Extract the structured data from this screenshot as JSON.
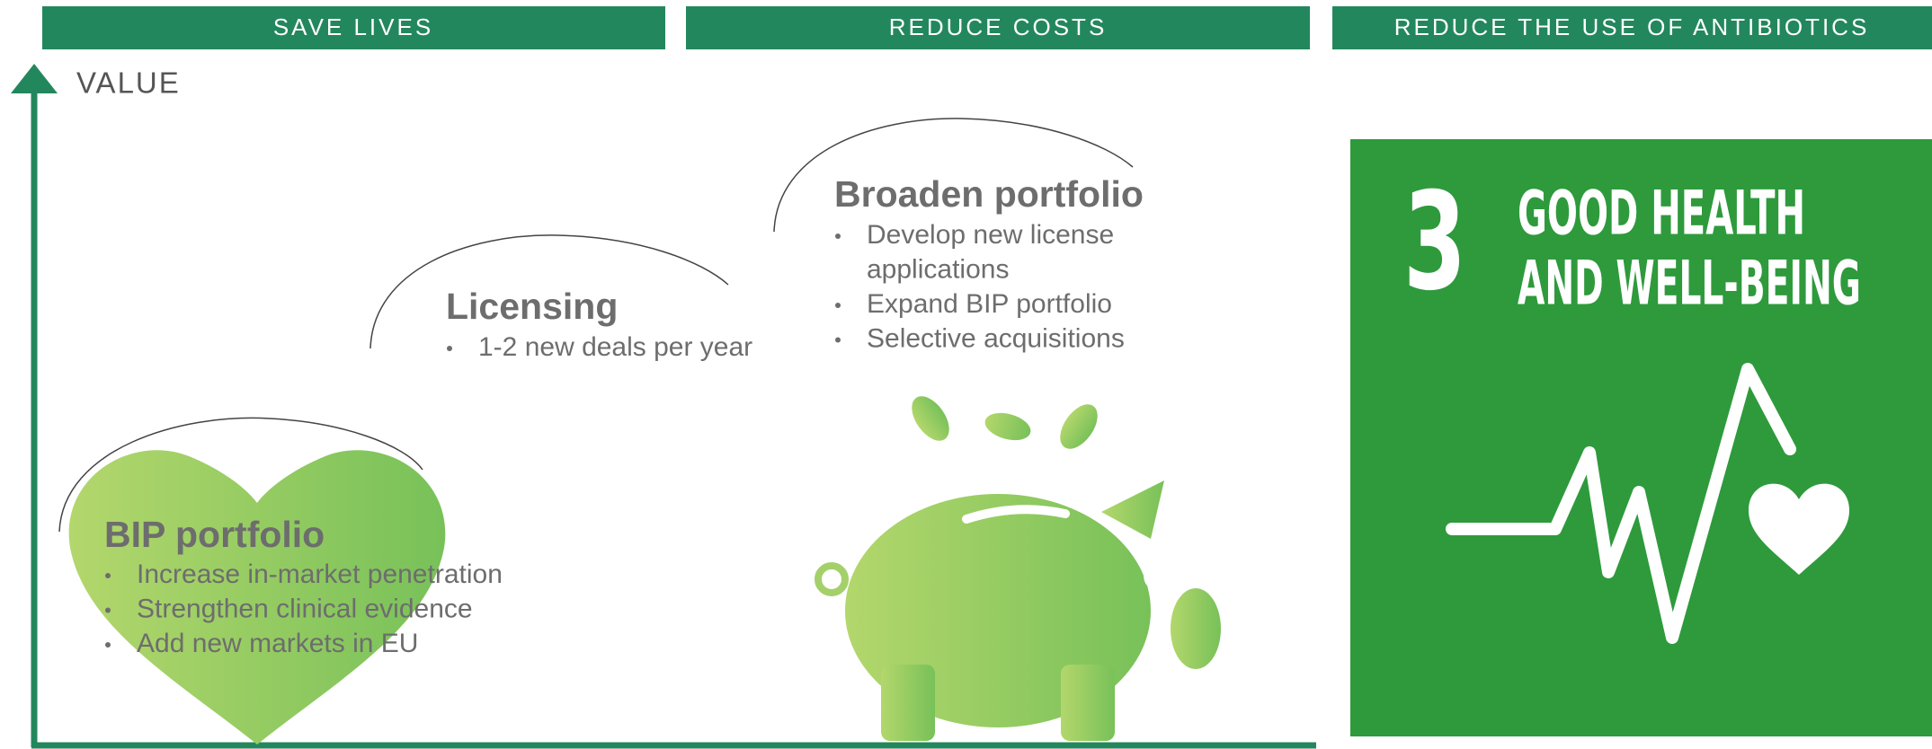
{
  "header": {
    "items": [
      "SAVE LIVES",
      "REDUCE COSTS",
      "REDUCE THE USE OF ANTIBIOTICS"
    ]
  },
  "axis": {
    "label": "VALUE"
  },
  "blocks": [
    {
      "title": "BIP portfolio",
      "bullets": [
        "Increase in-market penetration",
        "Strengthen clinical evidence",
        "Add new markets in EU"
      ]
    },
    {
      "title": "Licensing",
      "bullets": [
        "1-2 new deals per year"
      ]
    },
    {
      "title": "Broaden portfolio",
      "bullets": [
        "Develop new license",
        "applications",
        "Expand BIP portfolio",
        "Selective acquisitions"
      ]
    }
  ],
  "sdg": {
    "number": "3",
    "lines": [
      "GOOD HEALTH",
      "AND WELL-BEING"
    ]
  }
}
